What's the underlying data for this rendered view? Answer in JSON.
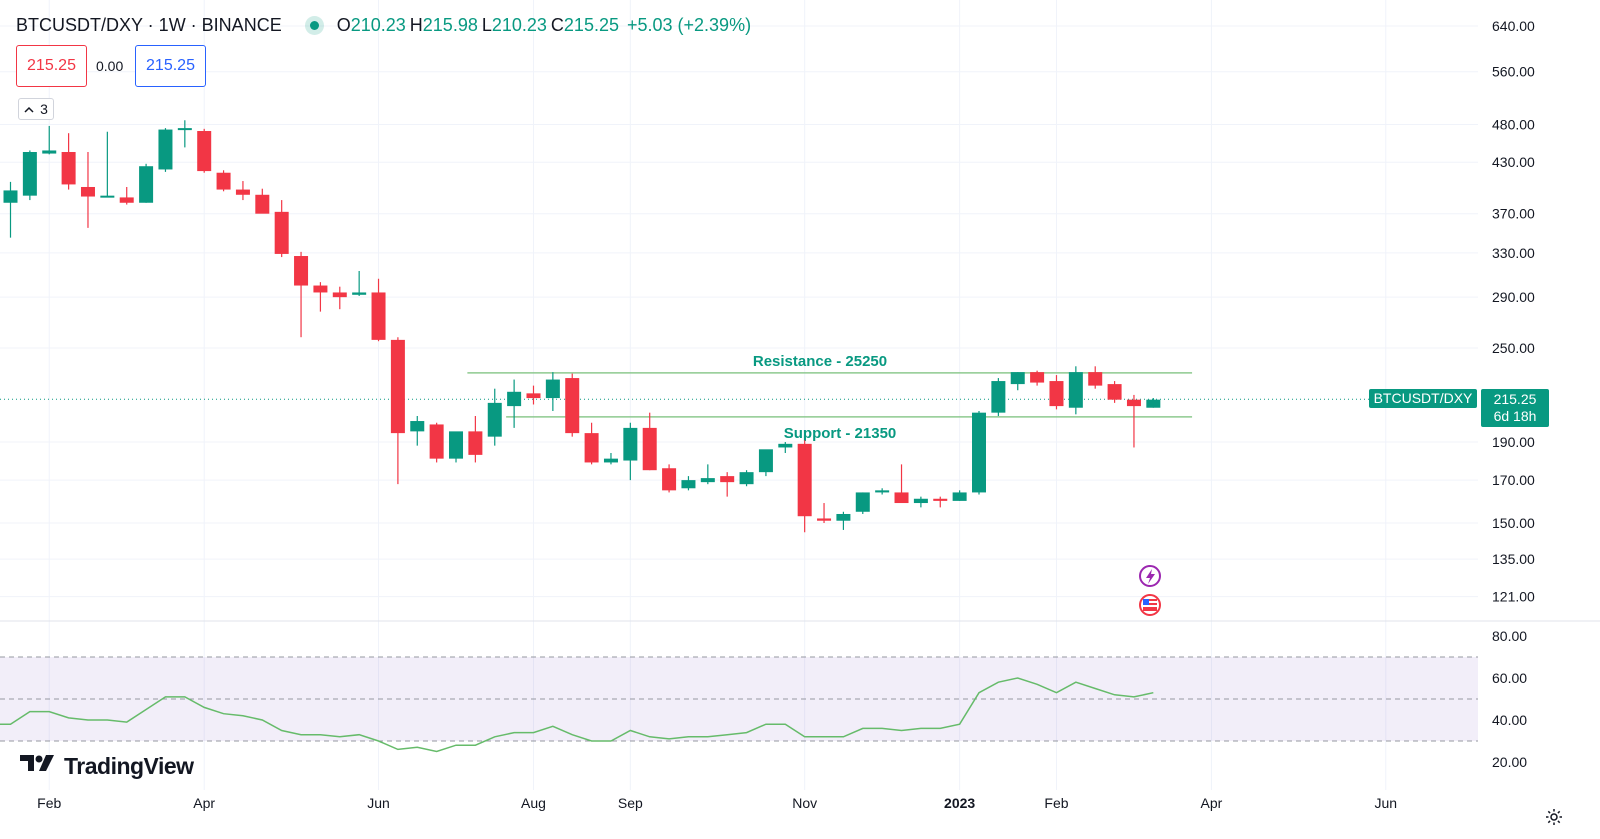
{
  "legend": {
    "symbol": "BTCUSDT/DXY · 1W · BINANCE",
    "o_label": "O",
    "o": "210.23",
    "h_label": "H",
    "h": "215.98",
    "l_label": "L",
    "l": "210.23",
    "c_label": "C",
    "c": "215.25",
    "change": "+5.03 (+2.39%)"
  },
  "trade": {
    "sell": "215.25",
    "spread": "0.00",
    "buy": "215.25"
  },
  "indicators_count": "3",
  "indicators_icon": "chevron-up-icon",
  "brand": "TradingView",
  "settings_icon": "gear-icon",
  "price_label": {
    "symbol": "BTCUSDT/DXY",
    "value": "215.25",
    "countdown": "6d 18h"
  },
  "colors": {
    "up": "#089981",
    "down": "#f23645",
    "level": "#8ec98f",
    "rsi": "#66bb6a",
    "rsi_band": "#7e57c2"
  },
  "chart_data": [
    {
      "type": "candlestick",
      "scale": "log",
      "y_ticks": [
        "640.00",
        "560.00",
        "480.00",
        "430.00",
        "370.00",
        "330.00",
        "290.00",
        "250.00",
        "190.00",
        "170.00",
        "150.00",
        "135.00",
        "121.00"
      ],
      "x_ticks": [
        "Feb",
        "Apr",
        "Jun",
        "Aug",
        "Sep",
        "Nov",
        "2023",
        "Feb",
        "Apr",
        "Jun"
      ],
      "last_price": 215.25,
      "levels": [
        {
          "label": "Resistance - 25250",
          "value": 232.5,
          "from_week": 24,
          "to_week": 61
        },
        {
          "label": "Support - 21350",
          "value": 204.5,
          "from_week": 26,
          "to_week": 61
        }
      ],
      "candles": [
        {
          "o": 382,
          "h": 406,
          "l": 345,
          "c": 396
        },
        {
          "o": 390,
          "h": 445,
          "l": 385,
          "c": 443
        },
        {
          "o": 441,
          "h": 478,
          "l": 440,
          "c": 445
        },
        {
          "o": 443,
          "h": 468,
          "l": 397,
          "c": 403
        },
        {
          "o": 400,
          "h": 443,
          "l": 355,
          "c": 389
        },
        {
          "o": 390,
          "h": 470,
          "l": 389,
          "c": 390
        },
        {
          "o": 388,
          "h": 400,
          "l": 380,
          "c": 382
        },
        {
          "o": 382,
          "h": 428,
          "l": 382,
          "c": 425
        },
        {
          "o": 421,
          "h": 475,
          "l": 418,
          "c": 473
        },
        {
          "o": 473,
          "h": 486,
          "l": 449,
          "c": 475
        },
        {
          "o": 471,
          "h": 474,
          "l": 417,
          "c": 419
        },
        {
          "o": 417,
          "h": 420,
          "l": 395,
          "c": 397
        },
        {
          "o": 397,
          "h": 407,
          "l": 385,
          "c": 391
        },
        {
          "o": 391,
          "h": 398,
          "l": 372,
          "c": 370
        },
        {
          "o": 372,
          "h": 385,
          "l": 326,
          "c": 329
        },
        {
          "o": 327,
          "h": 331,
          "l": 258,
          "c": 300
        },
        {
          "o": 300,
          "h": 303,
          "l": 278,
          "c": 294
        },
        {
          "o": 294,
          "h": 299,
          "l": 280,
          "c": 290
        },
        {
          "o": 292,
          "h": 313,
          "l": 291,
          "c": 294
        },
        {
          "o": 294,
          "h": 306,
          "l": 255,
          "c": 256
        },
        {
          "o": 256,
          "h": 258,
          "l": 168,
          "c": 195
        },
        {
          "o": 196,
          "h": 205,
          "l": 188,
          "c": 202
        },
        {
          "o": 200,
          "h": 201,
          "l": 179,
          "c": 181
        },
        {
          "o": 181,
          "h": 195,
          "l": 179,
          "c": 196
        },
        {
          "o": 196,
          "h": 205,
          "l": 179,
          "c": 183
        },
        {
          "o": 193,
          "h": 222,
          "l": 188,
          "c": 213
        },
        {
          "o": 211,
          "h": 228,
          "l": 198,
          "c": 220
        },
        {
          "o": 219,
          "h": 224,
          "l": 212,
          "c": 216
        },
        {
          "o": 216,
          "h": 233,
          "l": 208,
          "c": 228
        },
        {
          "o": 229,
          "h": 232,
          "l": 193,
          "c": 195
        },
        {
          "o": 195,
          "h": 201,
          "l": 178,
          "c": 179
        },
        {
          "o": 179,
          "h": 184,
          "l": 178,
          "c": 181
        },
        {
          "o": 180,
          "h": 201,
          "l": 170,
          "c": 198
        },
        {
          "o": 198,
          "h": 207,
          "l": 175,
          "c": 175
        },
        {
          "o": 176,
          "h": 178,
          "l": 164,
          "c": 165
        },
        {
          "o": 166,
          "h": 172,
          "l": 165,
          "c": 170
        },
        {
          "o": 169,
          "h": 178,
          "l": 168,
          "c": 171
        },
        {
          "o": 172,
          "h": 174,
          "l": 162,
          "c": 169
        },
        {
          "o": 168,
          "h": 175,
          "l": 167,
          "c": 174
        },
        {
          "o": 174,
          "h": 185,
          "l": 172,
          "c": 186
        },
        {
          "o": 187,
          "h": 190,
          "l": 184,
          "c": 189
        },
        {
          "o": 189,
          "h": 191,
          "l": 146,
          "c": 153
        },
        {
          "o": 152,
          "h": 159,
          "l": 150,
          "c": 151
        },
        {
          "o": 151,
          "h": 155,
          "l": 147,
          "c": 154
        },
        {
          "o": 155,
          "h": 164,
          "l": 154,
          "c": 164
        },
        {
          "o": 164,
          "h": 166,
          "l": 163,
          "c": 165
        },
        {
          "o": 164,
          "h": 178,
          "l": 160,
          "c": 159
        },
        {
          "o": 159,
          "h": 162,
          "l": 157,
          "c": 161
        },
        {
          "o": 161,
          "h": 162,
          "l": 157,
          "c": 160
        },
        {
          "o": 160,
          "h": 165,
          "l": 160,
          "c": 164
        },
        {
          "o": 164,
          "h": 208,
          "l": 163,
          "c": 207
        },
        {
          "o": 207,
          "h": 229,
          "l": 205,
          "c": 227
        },
        {
          "o": 225,
          "h": 233,
          "l": 221,
          "c": 233
        },
        {
          "o": 233,
          "h": 234,
          "l": 224,
          "c": 226
        },
        {
          "o": 227,
          "h": 231,
          "l": 209,
          "c": 211
        },
        {
          "o": 210,
          "h": 237,
          "l": 206,
          "c": 233
        },
        {
          "o": 233,
          "h": 237,
          "l": 222,
          "c": 224
        },
        {
          "o": 225,
          "h": 227,
          "l": 213,
          "c": 215
        },
        {
          "o": 215,
          "h": 218,
          "l": 187,
          "c": 211
        },
        {
          "o": 210,
          "h": 216,
          "l": 210,
          "c": 215
        }
      ]
    },
    {
      "type": "line",
      "name": "RSI",
      "y_ticks": [
        "80.00",
        "60.00",
        "40.00",
        "20.00"
      ],
      "ylim": [
        15,
        85
      ],
      "bands": [
        70,
        50,
        30
      ],
      "values": [
        38,
        44,
        44,
        41,
        40,
        40,
        39,
        45,
        51,
        51,
        46,
        43,
        42,
        40,
        35,
        33,
        33,
        32,
        33,
        30,
        26,
        27,
        25,
        28,
        28,
        32,
        34,
        34,
        37,
        33,
        30,
        30,
        35,
        32,
        31,
        32,
        32,
        33,
        34,
        38,
        38,
        32,
        32,
        32,
        36,
        36,
        35,
        36,
        36,
        38,
        53,
        58,
        60,
        57,
        53,
        58,
        55,
        52,
        51,
        53
      ],
      "first_value": 38
    }
  ]
}
